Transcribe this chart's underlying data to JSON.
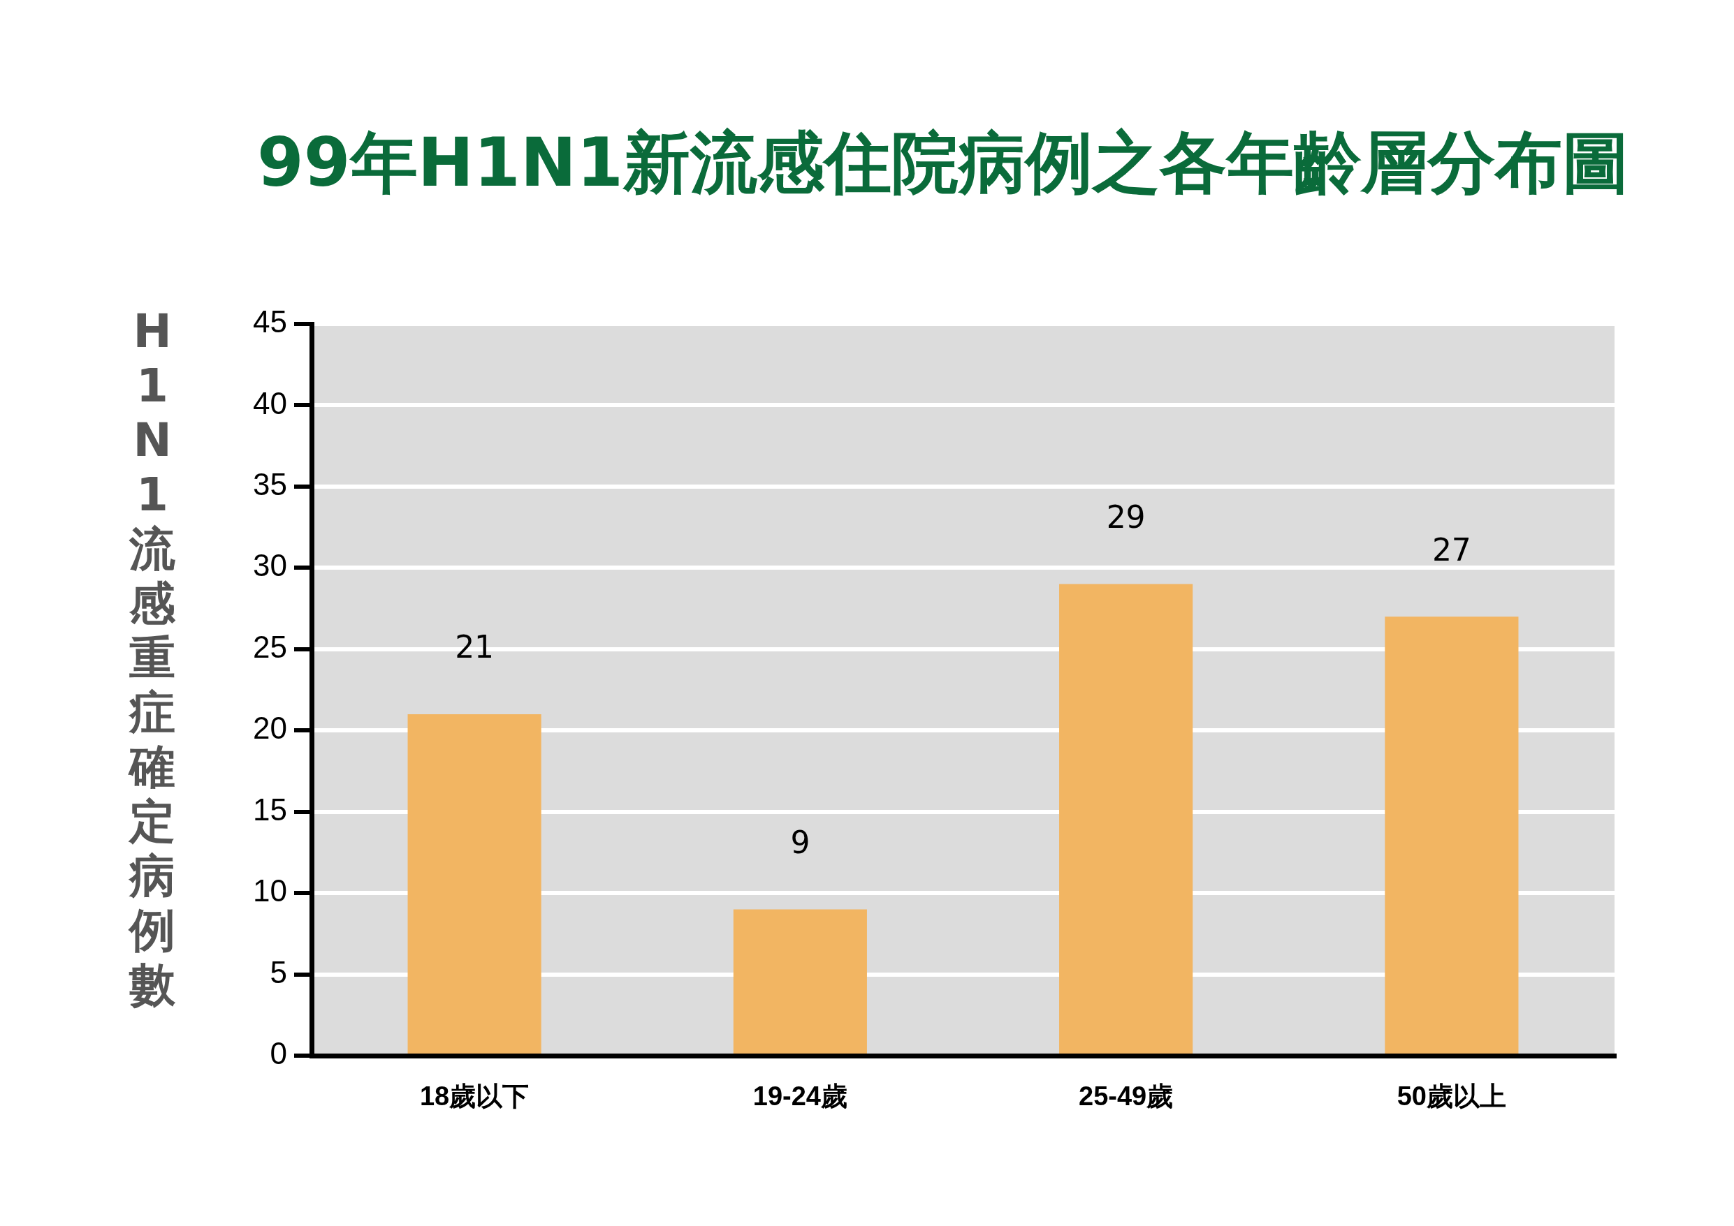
{
  "chart_data": {
    "type": "bar",
    "title": "99年H1N1新流感住院病例之各年齡層分布圖",
    "ylabel": "H1N1流感重症確定病例數",
    "categories": [
      "18歲以下",
      "19-24歲",
      "25-49歲",
      "50歲以上"
    ],
    "values": [
      21,
      9,
      29,
      27
    ],
    "color": "#f2b562",
    "ylim": [
      0,
      45
    ],
    "yticks": [
      0,
      5,
      10,
      15,
      20,
      25,
      30,
      35,
      40,
      45
    ],
    "grid": "y",
    "data_labels": true
  }
}
